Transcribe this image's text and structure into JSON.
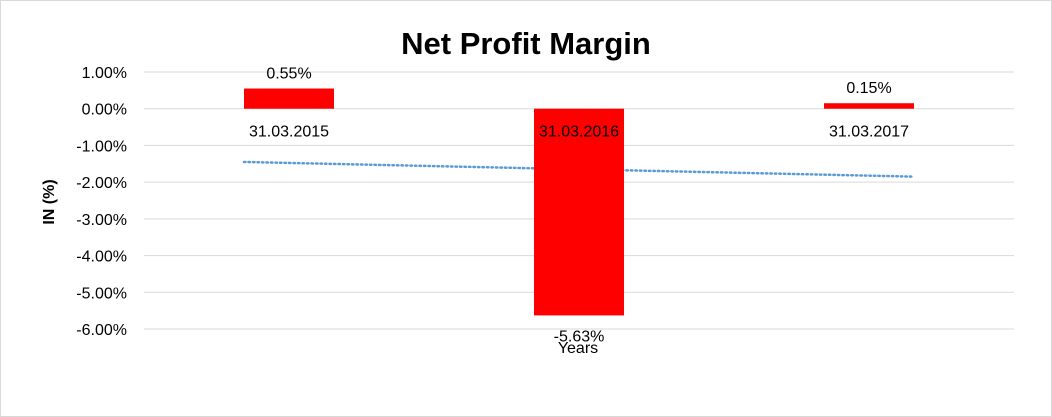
{
  "chart_data": {
    "type": "bar",
    "title": "Net Profit Margin",
    "xlabel": "Years",
    "ylabel": "IN (%)",
    "categories": [
      "31.03.2015",
      "31.03.2016",
      "31.03.2017"
    ],
    "values": [
      0.55,
      -5.63,
      0.15
    ],
    "data_labels": [
      "0.55%",
      "-5.63%",
      "0.15%"
    ],
    "ylim": [
      -6,
      1
    ],
    "yticks": [
      "1.00%",
      "0.00%",
      "-1.00%",
      "-2.00%",
      "-3.00%",
      "-4.00%",
      "-5.00%",
      "-6.00%"
    ],
    "ytick_values": [
      1,
      0,
      -1,
      -2,
      -3,
      -4,
      -5,
      -6
    ],
    "trendline": {
      "type": "linear",
      "style": "dotted",
      "color": "#5b9bd5",
      "start": -1.45,
      "end": -1.85
    },
    "bar_color": "#ff0000",
    "grid": true,
    "legend": "none"
  }
}
